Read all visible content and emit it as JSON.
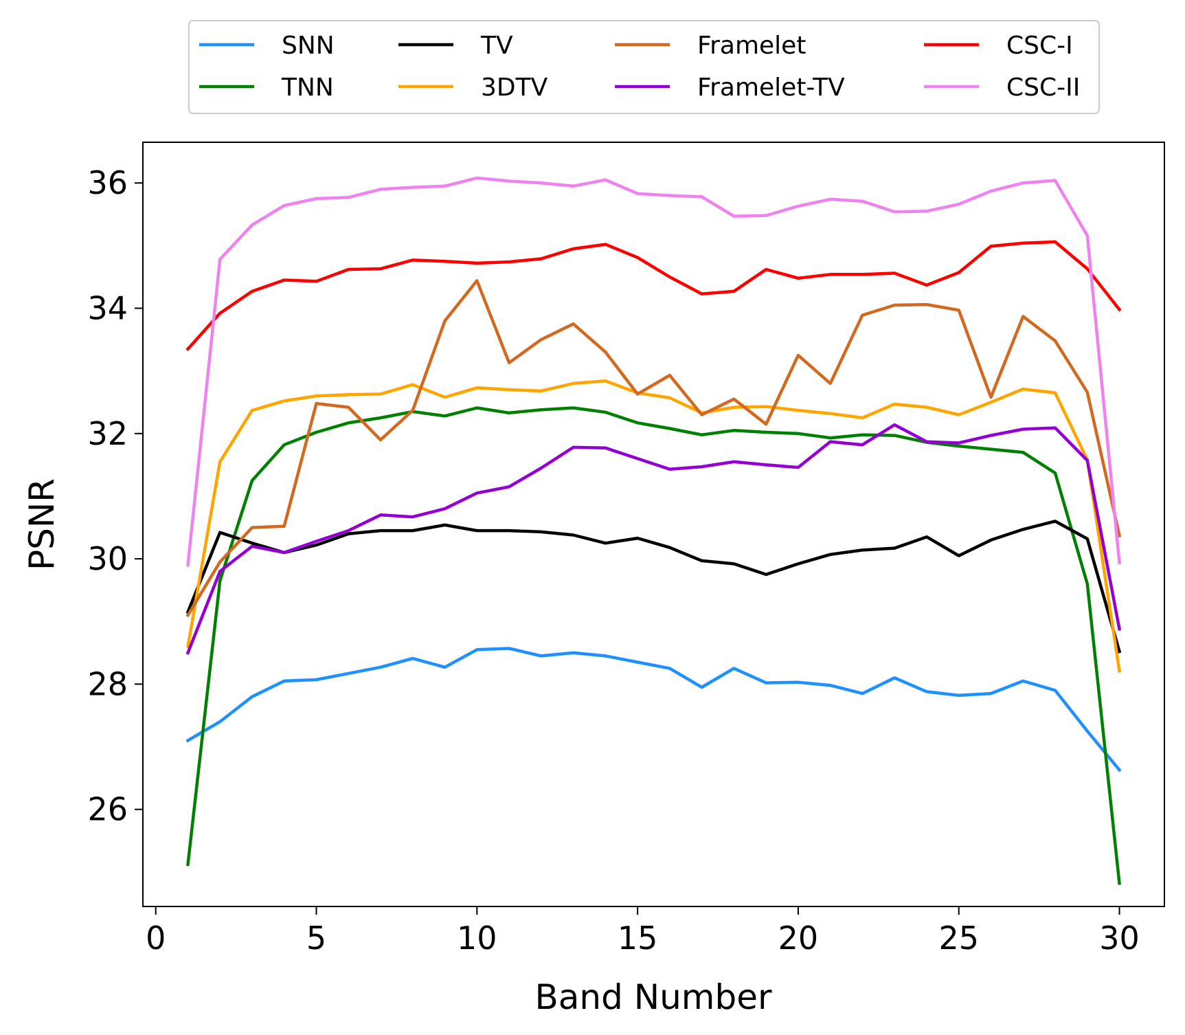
{
  "chart_data": {
    "type": "line",
    "title": "",
    "xlabel": "Band Number",
    "ylabel": "PSNR",
    "xlim": [
      -0.4,
      31.4
    ],
    "ylim": [
      24.45,
      36.65
    ],
    "xticks": [
      0,
      5,
      10,
      15,
      20,
      25,
      30
    ],
    "yticks": [
      26,
      28,
      30,
      32,
      34,
      36
    ],
    "grid": false,
    "legend_position": "top-center (outside)",
    "x": [
      1,
      2,
      3,
      4,
      5,
      6,
      7,
      8,
      9,
      10,
      11,
      12,
      13,
      14,
      15,
      16,
      17,
      18,
      19,
      20,
      21,
      22,
      23,
      24,
      25,
      26,
      27,
      28,
      29,
      30
    ],
    "series": [
      {
        "name": "SNN",
        "color": "#1e90ff",
        "values": [
          27.1,
          27.4,
          27.8,
          28.05,
          28.07,
          28.17,
          28.27,
          28.41,
          28.27,
          28.55,
          28.57,
          28.45,
          28.5,
          28.45,
          28.35,
          28.25,
          27.95,
          28.25,
          28.02,
          28.03,
          27.98,
          27.85,
          28.1,
          27.88,
          27.82,
          27.85,
          28.05,
          27.9,
          27.25,
          26.63
        ]
      },
      {
        "name": "TNN",
        "color": "#008000",
        "values": [
          25.12,
          29.65,
          31.25,
          31.82,
          32.02,
          32.17,
          32.25,
          32.35,
          32.28,
          32.41,
          32.33,
          32.38,
          32.41,
          32.34,
          32.17,
          32.08,
          31.98,
          32.05,
          32.02,
          32.0,
          31.93,
          31.98,
          31.97,
          31.86,
          31.8,
          31.75,
          31.7,
          31.37,
          29.6,
          24.82
        ]
      },
      {
        "name": "TV",
        "color": "#000000",
        "values": [
          29.15,
          30.42,
          30.25,
          30.1,
          30.22,
          30.4,
          30.45,
          30.45,
          30.54,
          30.45,
          30.45,
          30.43,
          30.38,
          30.25,
          30.33,
          30.18,
          29.97,
          29.92,
          29.75,
          29.92,
          30.07,
          30.14,
          30.17,
          30.35,
          30.05,
          30.3,
          30.47,
          30.6,
          30.32,
          28.52
        ]
      },
      {
        "name": "3DTV",
        "color": "#ffa500",
        "values": [
          28.6,
          31.55,
          32.37,
          32.52,
          32.6,
          32.62,
          32.63,
          32.78,
          32.58,
          32.73,
          32.7,
          32.68,
          32.8,
          32.84,
          32.65,
          32.57,
          32.33,
          32.42,
          32.43,
          32.37,
          32.32,
          32.25,
          32.47,
          32.42,
          32.3,
          32.5,
          32.71,
          32.65,
          31.58,
          28.21
        ]
      },
      {
        "name": "Framelet",
        "color": "#d2691e",
        "values": [
          29.1,
          29.95,
          30.5,
          30.52,
          32.48,
          32.42,
          31.9,
          32.37,
          33.8,
          34.44,
          33.13,
          33.5,
          33.75,
          33.3,
          32.63,
          32.93,
          32.3,
          32.55,
          32.15,
          33.25,
          32.8,
          33.89,
          34.05,
          34.06,
          33.97,
          32.58,
          33.87,
          33.48,
          32.66,
          30.37
        ]
      },
      {
        "name": "Framelet-TV",
        "color": "#9400d3",
        "values": [
          28.5,
          29.8,
          30.2,
          30.1,
          30.28,
          30.45,
          30.7,
          30.67,
          30.8,
          31.05,
          31.15,
          31.45,
          31.78,
          31.77,
          31.6,
          31.43,
          31.47,
          31.55,
          31.5,
          31.46,
          31.87,
          31.82,
          32.14,
          31.87,
          31.85,
          31.97,
          32.07,
          32.09,
          31.57,
          28.88
        ]
      },
      {
        "name": "CSC-I",
        "color": "#ff0000",
        "values": [
          33.35,
          33.92,
          34.27,
          34.45,
          34.43,
          34.62,
          34.63,
          34.77,
          34.75,
          34.72,
          34.74,
          34.79,
          34.95,
          35.02,
          34.81,
          34.5,
          34.23,
          34.27,
          34.62,
          34.48,
          34.54,
          34.54,
          34.56,
          34.37,
          34.57,
          34.99,
          35.04,
          35.06,
          34.63,
          33.98
        ]
      },
      {
        "name": "CSC-II",
        "color": "#ee82ee",
        "values": [
          29.9,
          34.78,
          35.33,
          35.64,
          35.75,
          35.77,
          35.9,
          35.93,
          35.95,
          36.08,
          36.03,
          36.0,
          35.95,
          36.05,
          35.83,
          35.8,
          35.78,
          35.47,
          35.48,
          35.63,
          35.74,
          35.71,
          35.54,
          35.55,
          35.66,
          35.87,
          36.0,
          36.04,
          35.16,
          29.94
        ]
      }
    ]
  }
}
